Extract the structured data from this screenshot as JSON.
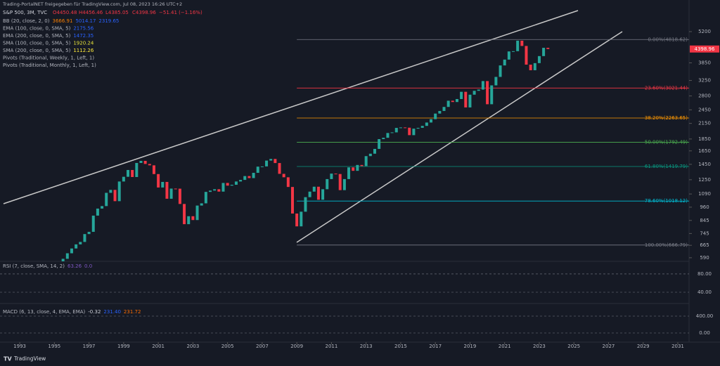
{
  "watermark": "Trading-PortalNET freigegeben für TradingView.com, Jul 08, 2023 16:26 UTC+2",
  "brand": "TradingView",
  "header": {
    "symbol": "S&P 500, 3M, TVC",
    "ohlc": [
      "O4450.48",
      "H4456.46",
      "L4385.05",
      "C4398.96",
      "−51.41 (−1.16%)"
    ],
    "indicators": [
      {
        "name": "BB (20, close, 2, 0)",
        "values": [
          3666.91,
          5014.17,
          2319.65
        ],
        "colors": [
          "#f57c00",
          "#2962ff",
          "#2962ff"
        ]
      },
      {
        "name": "EMA (100, close, 0, SMA, 5)",
        "values": [
          2175.56
        ],
        "colors": [
          "#2962ff"
        ]
      },
      {
        "name": "EMA (200, close, 0, SMA, 5)",
        "values": [
          1472.35
        ],
        "colors": [
          "#2962ff"
        ]
      },
      {
        "name": "SMA (100, close, 0, SMA, 5)",
        "values": [
          1920.24
        ],
        "colors": [
          "#e5e03a"
        ]
      },
      {
        "name": "SMA (200, close, 0, SMA, 5)",
        "values": [
          1112.26
        ],
        "colors": [
          "#ffeb3b"
        ]
      },
      {
        "name": "Pivots (Traditional, Weekly, 1, Left, 1)",
        "values": [],
        "colors": []
      },
      {
        "name": "Pivots (Traditional, Monthly, 1, Left, 1)",
        "values": [],
        "colors": []
      }
    ]
  },
  "chart_data": {
    "type": "candlestick",
    "log_scale": true,
    "up_color": "#26a69a",
    "down_color": "#f23645",
    "x": [
      1994.75,
      1995,
      1995.25,
      1995.5,
      1995.75,
      1996,
      1996.25,
      1996.5,
      1996.75,
      1997,
      1997.25,
      1997.5,
      1997.75,
      1998,
      1998.25,
      1998.5,
      1998.75,
      1999,
      1999.25,
      1999.5,
      1999.75,
      2000,
      2000.25,
      2000.5,
      2000.75,
      2001,
      2001.25,
      2001.5,
      2001.75,
      2002,
      2002.25,
      2002.5,
      2002.75,
      2003,
      2003.25,
      2003.5,
      2003.75,
      2004,
      2004.25,
      2004.5,
      2004.75,
      2005,
      2005.25,
      2005.5,
      2005.75,
      2006,
      2006.25,
      2006.5,
      2006.75,
      2007,
      2007.25,
      2007.5,
      2007.75,
      2008,
      2008.25,
      2008.5,
      2008.75,
      2009,
      2009.25,
      2009.5,
      2009.75,
      2010,
      2010.25,
      2010.5,
      2010.75,
      2011,
      2011.25,
      2011.5,
      2011.75,
      2012,
      2012.25,
      2012.5,
      2012.75,
      2013,
      2013.25,
      2013.5,
      2013.75,
      2014,
      2014.25,
      2014.5,
      2014.75,
      2015,
      2015.25,
      2015.5,
      2015.75,
      2016,
      2016.25,
      2016.5,
      2016.75,
      2017,
      2017.25,
      2017.5,
      2017.75,
      2018,
      2018.25,
      2018.5,
      2018.75,
      2019,
      2019.25,
      2019.5,
      2019.75,
      2020,
      2020.25,
      2020.5,
      2020.75,
      2021,
      2021.25,
      2021.5,
      2021.75,
      2022,
      2022.25,
      2022.5,
      2022.75,
      2023,
      2023.25,
      2023.5
    ],
    "values": [
      459,
      500,
      545,
      584,
      616,
      645,
      671,
      687,
      741,
      757,
      885,
      947,
      970,
      1102,
      1134,
      1017,
      1229,
      1286,
      1373,
      1283,
      1469,
      1499,
      1455,
      1436,
      1320,
      1160,
      1224,
      1041,
      1148,
      1147,
      990,
      815,
      880,
      848,
      975,
      996,
      1112,
      1126,
      1141,
      1115,
      1212,
      1181,
      1191,
      1229,
      1248,
      1295,
      1270,
      1336,
      1418,
      1421,
      1503,
      1527,
      1468,
      1323,
      1280,
      1166,
      903,
      798,
      919,
      1057,
      1115,
      1169,
      1031,
      1141,
      1258,
      1326,
      1321,
      1131,
      1258,
      1408,
      1362,
      1441,
      1426,
      1569,
      1606,
      1682,
      1848,
      1872,
      1960,
      1972,
      2059,
      2068,
      2063,
      1920,
      2044,
      2060,
      2099,
      2168,
      2239,
      2363,
      2423,
      2519,
      2674,
      2641,
      2718,
      2914,
      2507,
      2834,
      2942,
      2977,
      3231,
      2585,
      3100,
      3363,
      3756,
      3973,
      4298,
      4308,
      4766,
      4530,
      3785,
      3586,
      3840,
      4109,
      4450,
      4398.96
    ],
    "last_label": "4398.96",
    "xlim": [
      1991.86,
      2031.65
    ],
    "xticks": [
      1993,
      1995,
      1997,
      1999,
      2001,
      2003,
      2005,
      2007,
      2009,
      2011,
      2013,
      2015,
      2017,
      2019,
      2021,
      2023,
      2025,
      2027,
      2029,
      2031
    ],
    "ylim": [
      570,
      7050
    ],
    "yticks": [
      5200,
      3850,
      3250,
      2800,
      2450,
      2150,
      1850,
      1650,
      1450,
      1250,
      1090,
      960,
      845,
      745,
      665,
      590
    ],
    "fib_start": 2009,
    "fib_levels": [
      {
        "value": 4818.62,
        "label": "0.00%(4818.62)",
        "color": "#787b86"
      },
      {
        "value": 3021.44,
        "label": "23.60%(3021.44)",
        "color": "#f23645"
      },
      {
        "value": 2263.65,
        "label": "38.20%(2263.65)",
        "color": "#ff9800"
      },
      {
        "value": 1792.49,
        "label": "50.00%(1792.49)",
        "color": "#4caf50"
      },
      {
        "value": 1419.79,
        "label": "61.80%(1419.79)",
        "color": "#089981"
      },
      {
        "value": 1018.12,
        "label": "78.60%(1018.12)",
        "color": "#00bcd4"
      },
      {
        "value": 666.79,
        "label": "100.00%(666.79)",
        "color": "#787b86"
      }
    ]
  },
  "rsi": {
    "name": "RSI (7, close, SMA, 14, 2)",
    "values": [
      63.26,
      0.0
    ],
    "value_labels": [
      "63.26",
      "0.0"
    ],
    "ylim": [
      18.5,
      103
    ],
    "yticks": [
      {
        "value": 80,
        "label": "80.00"
      },
      {
        "value": 40,
        "label": "40.00"
      }
    ]
  },
  "macd": {
    "name": "MACD (6, 13, close, 4, EMA, EMA)",
    "values": [
      -0.32,
      231.4,
      231.72
    ],
    "value_labels": [
      "-0.32",
      "231.40",
      "231.72"
    ],
    "colors": [
      "#d1d4dc",
      "#2962ff",
      "#ff6d00"
    ],
    "ylim": [
      -217,
      617
    ],
    "yticks": [
      {
        "value": 400,
        "label": "400.00"
      },
      {
        "value": 0,
        "label": "0.00"
      }
    ]
  }
}
